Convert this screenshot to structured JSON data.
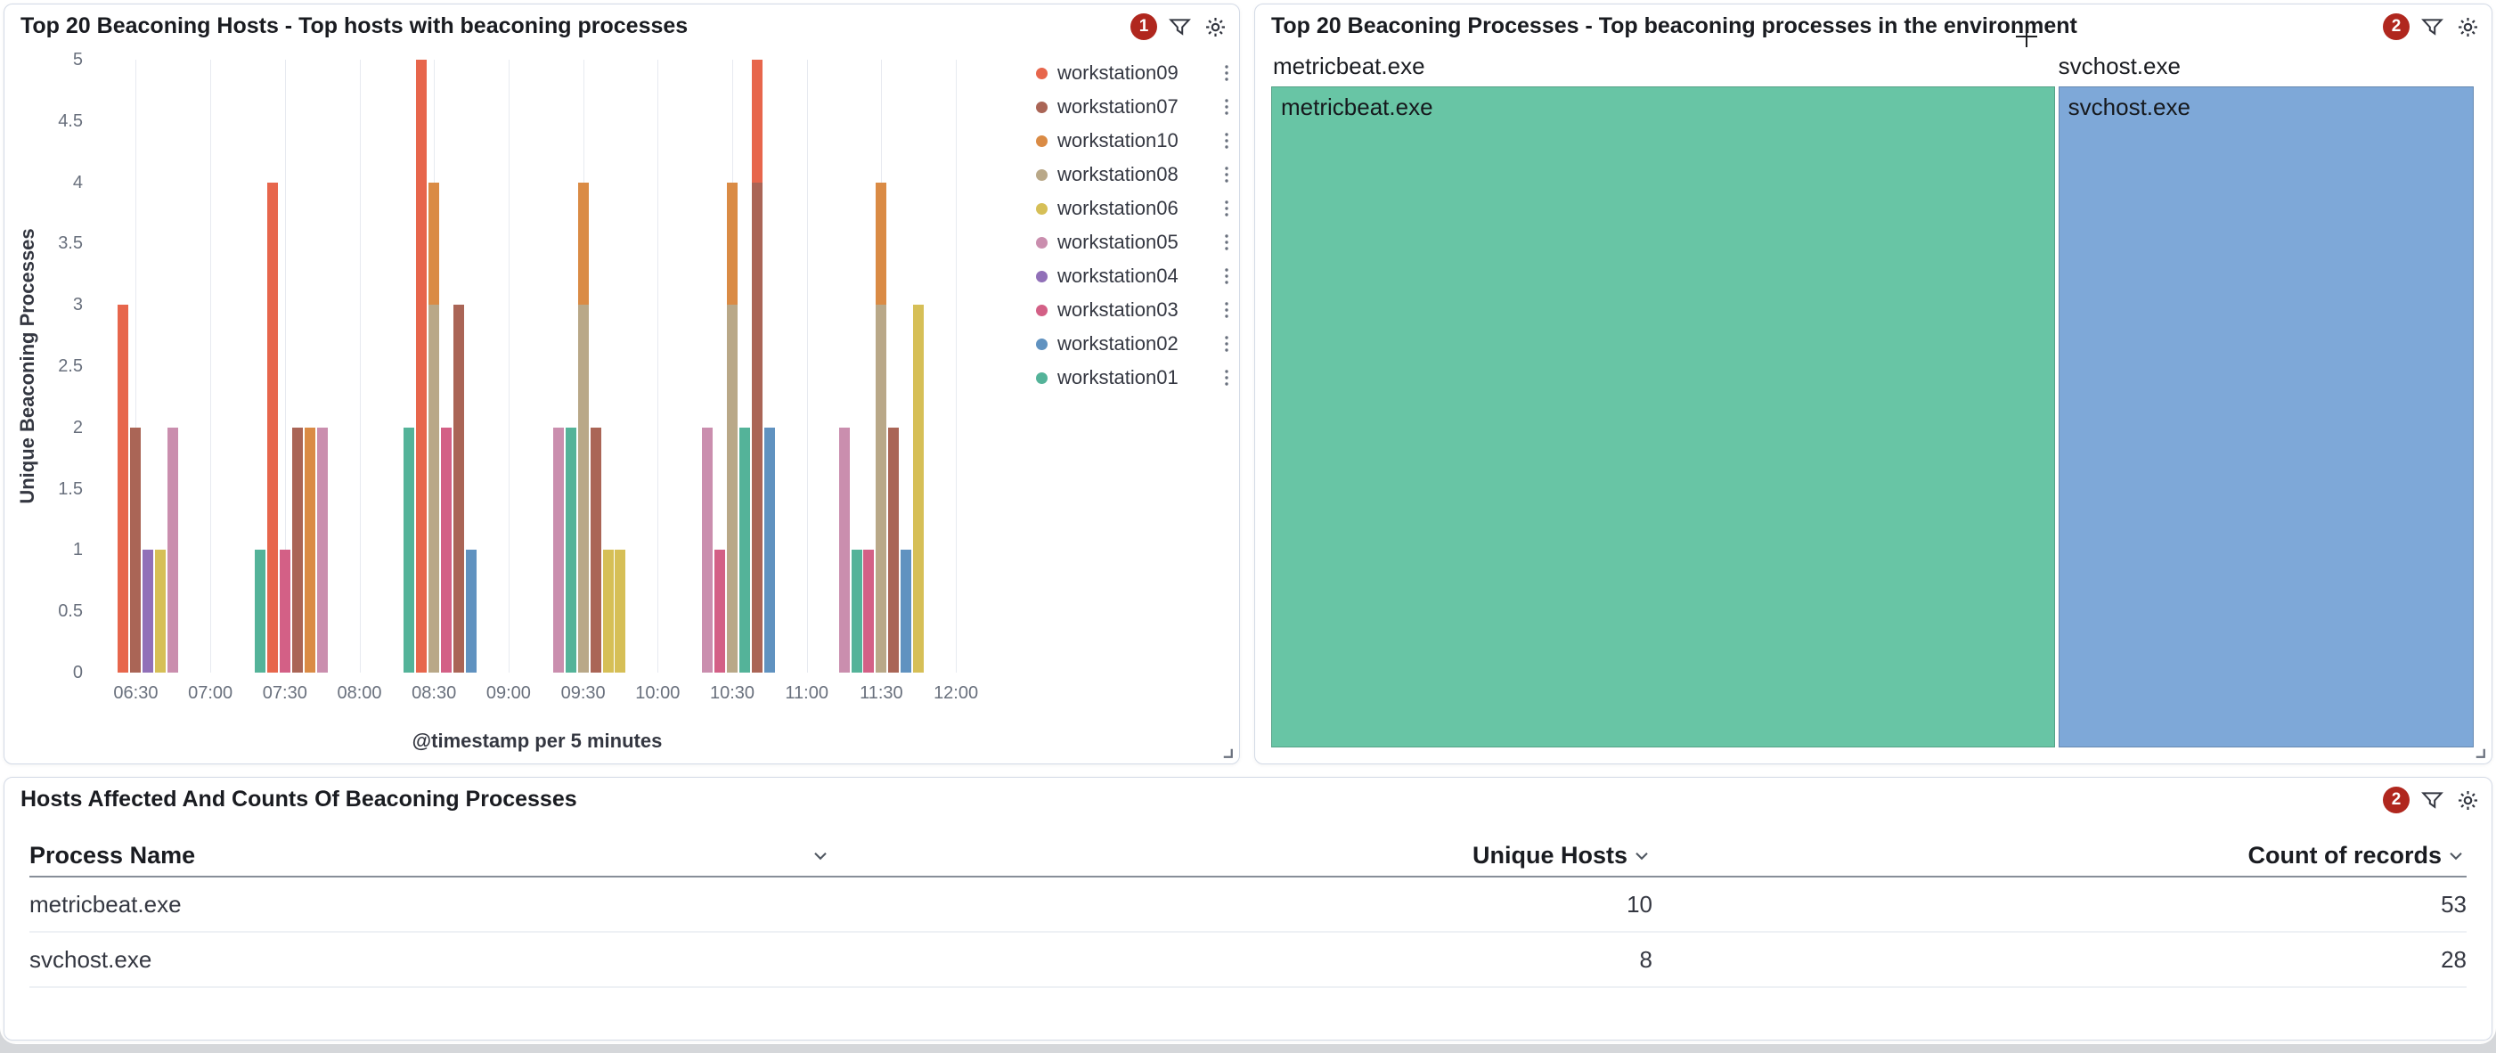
{
  "ui_colors": {
    "badge_bg": "#B0271E",
    "icon": "#343741",
    "panel_border": "#D3DAE6",
    "grid_line": "#E7EAF0"
  },
  "panels": {
    "hosts": {
      "title": "Top 20 Beaconing Hosts - Top hosts with beaconing processes",
      "badge": "1"
    },
    "processes": {
      "title": "Top 20 Beaconing Processes - Top beaconing processes in the environment",
      "badge": "2"
    },
    "affected": {
      "title": "Hosts Affected And Counts Of Beaconing Processes",
      "badge": "2"
    }
  },
  "icons": {
    "panel_header": [
      "filter-icon",
      "gear-icon"
    ],
    "table_sort": "chevron-down-icon",
    "legend_row": "vertical-dots-icon",
    "top_panel_corner": "resize-handle-icon",
    "pointer": "plus-crosshair-cursor"
  },
  "chart_data": [
    {
      "type": "bar",
      "title": "Top 20 Beaconing Hosts - Top hosts with beaconing processes",
      "xlabel": "@timestamp per 5 minutes",
      "ylabel": "Unique Beaconing Processes",
      "ylim": [
        0,
        5
      ],
      "y_ticks": [
        0,
        0.5,
        1,
        1.5,
        2,
        2.5,
        3,
        3.5,
        4,
        4.5,
        5
      ],
      "x_ticks": [
        "06:30",
        "07:00",
        "07:30",
        "08:00",
        "08:30",
        "09:00",
        "09:30",
        "10:00",
        "10:30",
        "11:00",
        "11:30",
        "12:00"
      ],
      "x_start": "06:13",
      "x_end": "12:10",
      "bar_interval_minutes": 5,
      "grid": "vertical",
      "legend_position": "right",
      "legend": [
        {
          "label": "workstation09",
          "color": "#E7664C"
        },
        {
          "label": "workstation07",
          "color": "#AA6556"
        },
        {
          "label": "workstation10",
          "color": "#DA8B45"
        },
        {
          "label": "workstation08",
          "color": "#B9A888"
        },
        {
          "label": "workstation06",
          "color": "#D6BF57"
        },
        {
          "label": "workstation05",
          "color": "#CA8EAE"
        },
        {
          "label": "workstation04",
          "color": "#9170B8"
        },
        {
          "label": "workstation03",
          "color": "#D36086"
        },
        {
          "label": "workstation02",
          "color": "#6092C0"
        },
        {
          "label": "workstation01",
          "color": "#54B399"
        }
      ],
      "bars": [
        {
          "time": "06:25",
          "segments": [
            {
              "series": "workstation09",
              "value": 3
            }
          ]
        },
        {
          "time": "06:30",
          "segments": [
            {
              "series": "workstation07",
              "value": 2
            }
          ]
        },
        {
          "time": "06:35",
          "segments": [
            {
              "series": "workstation04",
              "value": 1
            }
          ]
        },
        {
          "time": "06:40",
          "segments": [
            {
              "series": "workstation06",
              "value": 1
            }
          ]
        },
        {
          "time": "06:45",
          "segments": [
            {
              "series": "workstation05",
              "value": 2
            }
          ]
        },
        {
          "time": "07:20",
          "segments": [
            {
              "series": "workstation01",
              "value": 1
            }
          ]
        },
        {
          "time": "07:25",
          "segments": [
            {
              "series": "workstation09",
              "value": 4
            }
          ]
        },
        {
          "time": "07:30",
          "segments": [
            {
              "series": "workstation03",
              "value": 1
            }
          ]
        },
        {
          "time": "07:35",
          "segments": [
            {
              "series": "workstation07",
              "value": 2
            }
          ]
        },
        {
          "time": "07:40",
          "segments": [
            {
              "series": "workstation10",
              "value": 2
            }
          ]
        },
        {
          "time": "07:45",
          "segments": [
            {
              "series": "workstation05",
              "value": 2
            }
          ]
        },
        {
          "time": "08:20",
          "segments": [
            {
              "series": "workstation01",
              "value": 2
            }
          ]
        },
        {
          "time": "08:25",
          "segments": [
            {
              "series": "workstation09",
              "value": 5
            }
          ]
        },
        {
          "time": "08:30",
          "segments": [
            {
              "series": "workstation08",
              "value": 3
            },
            {
              "series": "workstation10",
              "value": 1
            }
          ]
        },
        {
          "time": "08:35",
          "segments": [
            {
              "series": "workstation03",
              "value": 2
            }
          ]
        },
        {
          "time": "08:40",
          "segments": [
            {
              "series": "workstation07",
              "value": 3
            }
          ]
        },
        {
          "time": "08:45",
          "segments": [
            {
              "series": "workstation02",
              "value": 1
            }
          ]
        },
        {
          "time": "09:20",
          "segments": [
            {
              "series": "workstation05",
              "value": 2
            }
          ]
        },
        {
          "time": "09:25",
          "segments": [
            {
              "series": "workstation01",
              "value": 2
            }
          ]
        },
        {
          "time": "09:30",
          "segments": [
            {
              "series": "workstation08",
              "value": 3
            },
            {
              "series": "workstation10",
              "value": 1
            }
          ]
        },
        {
          "time": "09:35",
          "segments": [
            {
              "series": "workstation07",
              "value": 2
            }
          ]
        },
        {
          "time": "09:40",
          "segments": [
            {
              "series": "workstation06",
              "value": 1
            }
          ]
        },
        {
          "time": "09:45",
          "segments": [
            {
              "series": "workstation06",
              "value": 1
            }
          ]
        },
        {
          "time": "10:20",
          "segments": [
            {
              "series": "workstation05",
              "value": 2
            }
          ]
        },
        {
          "time": "10:25",
          "segments": [
            {
              "series": "workstation03",
              "value": 1
            }
          ]
        },
        {
          "time": "10:30",
          "segments": [
            {
              "series": "workstation08",
              "value": 3
            },
            {
              "series": "workstation10",
              "value": 1
            }
          ]
        },
        {
          "time": "10:35",
          "segments": [
            {
              "series": "workstation01",
              "value": 2
            }
          ]
        },
        {
          "time": "10:40",
          "segments": [
            {
              "series": "workstation07",
              "value": 4
            },
            {
              "series": "workstation09",
              "value": 1
            }
          ]
        },
        {
          "time": "10:45",
          "segments": [
            {
              "series": "workstation02",
              "value": 2
            }
          ]
        },
        {
          "time": "11:15",
          "segments": [
            {
              "series": "workstation05",
              "value": 2
            }
          ]
        },
        {
          "time": "11:20",
          "segments": [
            {
              "series": "workstation01",
              "value": 1
            }
          ]
        },
        {
          "time": "11:25",
          "segments": [
            {
              "series": "workstation03",
              "value": 1
            }
          ]
        },
        {
          "time": "11:30",
          "segments": [
            {
              "series": "workstation08",
              "value": 3
            },
            {
              "series": "workstation10",
              "value": 1
            }
          ]
        },
        {
          "time": "11:35",
          "segments": [
            {
              "series": "workstation07",
              "value": 2
            }
          ]
        },
        {
          "time": "11:40",
          "segments": [
            {
              "series": "workstation02",
              "value": 1
            }
          ]
        },
        {
          "time": "11:45",
          "segments": [
            {
              "series": "workstation06",
              "value": 3
            }
          ]
        }
      ]
    },
    {
      "type": "treemap",
      "title": "Top 20 Beaconing Processes - Top beaconing processes in the environment",
      "slices": [
        {
          "label": "metricbeat.exe",
          "value": 53,
          "share": 0.654,
          "color": "#68C5A5"
        },
        {
          "label": "svchost.exe",
          "value": 28,
          "share": 0.346,
          "color": "#7EA8D8"
        }
      ]
    },
    {
      "type": "table",
      "title": "Hosts Affected And Counts Of Beaconing Processes",
      "columns": [
        "Process Name",
        "Unique Hosts",
        "Count of records"
      ],
      "rows": [
        {
          "process": "metricbeat.exe",
          "unique_hosts": 10,
          "count": 53
        },
        {
          "process": "svchost.exe",
          "unique_hosts": 8,
          "count": 28
        }
      ]
    }
  ]
}
